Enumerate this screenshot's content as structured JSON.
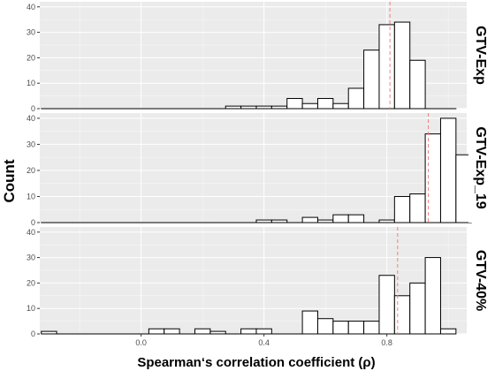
{
  "chart_data": {
    "type": "bar",
    "xlabel": "Spearman‘s correlation coefficient (ρ)",
    "ylabel": "Count",
    "x_ticks": [
      "0.0",
      "0.4",
      "0.8"
    ],
    "x_tick_values": [
      0.0,
      0.4,
      0.8
    ],
    "xlim": [
      -0.33,
      1.06
    ],
    "y_ticks": [
      "0",
      "10",
      "20",
      "30",
      "40"
    ],
    "y_tick_values": [
      0,
      10,
      20,
      30,
      40
    ],
    "ylim": [
      0,
      42
    ],
    "bin_width": 0.05,
    "grid": true,
    "colors": {
      "panel_bg": "#ebebeb",
      "grid": "#ffffff",
      "bar_fill": "#ffffff",
      "bar_stroke": "#000000",
      "median_line": "#f08080"
    },
    "panels": [
      {
        "name": "GTV-Exp",
        "reference_line": 0.81,
        "bins": [
          {
            "x": -0.3,
            "count": 0
          },
          {
            "x": -0.25,
            "count": 0
          },
          {
            "x": -0.2,
            "count": 0
          },
          {
            "x": -0.15,
            "count": 0
          },
          {
            "x": -0.1,
            "count": 0
          },
          {
            "x": -0.05,
            "count": 0
          },
          {
            "x": 0.0,
            "count": 0
          },
          {
            "x": 0.05,
            "count": 0
          },
          {
            "x": 0.1,
            "count": 0
          },
          {
            "x": 0.15,
            "count": 0
          },
          {
            "x": 0.2,
            "count": 0
          },
          {
            "x": 0.25,
            "count": 0
          },
          {
            "x": 0.3,
            "count": 1
          },
          {
            "x": 0.35,
            "count": 1
          },
          {
            "x": 0.4,
            "count": 1
          },
          {
            "x": 0.45,
            "count": 1
          },
          {
            "x": 0.5,
            "count": 4
          },
          {
            "x": 0.55,
            "count": 2
          },
          {
            "x": 0.6,
            "count": 4
          },
          {
            "x": 0.65,
            "count": 2
          },
          {
            "x": 0.7,
            "count": 8
          },
          {
            "x": 0.75,
            "count": 23
          },
          {
            "x": 0.8,
            "count": 33
          },
          {
            "x": 0.85,
            "count": 34
          },
          {
            "x": 0.9,
            "count": 19
          },
          {
            "x": 0.95,
            "count": 0
          },
          {
            "x": 1.0,
            "count": 0
          }
        ]
      },
      {
        "name": "GTV-Exp_19",
        "reference_line": 0.935,
        "bins": [
          {
            "x": -0.3,
            "count": 0
          },
          {
            "x": -0.25,
            "count": 0
          },
          {
            "x": -0.2,
            "count": 0
          },
          {
            "x": -0.15,
            "count": 0
          },
          {
            "x": -0.1,
            "count": 0
          },
          {
            "x": -0.05,
            "count": 0
          },
          {
            "x": 0.0,
            "count": 0
          },
          {
            "x": 0.05,
            "count": 0
          },
          {
            "x": 0.1,
            "count": 0
          },
          {
            "x": 0.15,
            "count": 0
          },
          {
            "x": 0.2,
            "count": 0
          },
          {
            "x": 0.25,
            "count": 0
          },
          {
            "x": 0.3,
            "count": 0
          },
          {
            "x": 0.35,
            "count": 0
          },
          {
            "x": 0.4,
            "count": 1
          },
          {
            "x": 0.45,
            "count": 1
          },
          {
            "x": 0.5,
            "count": 0
          },
          {
            "x": 0.55,
            "count": 2
          },
          {
            "x": 0.6,
            "count": 1
          },
          {
            "x": 0.65,
            "count": 3
          },
          {
            "x": 0.7,
            "count": 3
          },
          {
            "x": 0.75,
            "count": 0
          },
          {
            "x": 0.8,
            "count": 1
          },
          {
            "x": 0.85,
            "count": 10
          },
          {
            "x": 0.9,
            "count": 11
          },
          {
            "x": 0.95,
            "count": 34
          },
          {
            "x": 1.0,
            "count": 40
          },
          {
            "x": 1.05,
            "count": 26
          }
        ]
      },
      {
        "name": "GTV-40%",
        "reference_line": 0.835,
        "bins": [
          {
            "x": -0.3,
            "count": 1
          },
          {
            "x": -0.25,
            "count": 0
          },
          {
            "x": -0.2,
            "count": 0
          },
          {
            "x": -0.15,
            "count": 0
          },
          {
            "x": -0.1,
            "count": 0
          },
          {
            "x": -0.05,
            "count": 0
          },
          {
            "x": 0.0,
            "count": 0
          },
          {
            "x": 0.05,
            "count": 2
          },
          {
            "x": 0.1,
            "count": 2
          },
          {
            "x": 0.15,
            "count": 0
          },
          {
            "x": 0.2,
            "count": 2
          },
          {
            "x": 0.25,
            "count": 1
          },
          {
            "x": 0.3,
            "count": 0
          },
          {
            "x": 0.35,
            "count": 2
          },
          {
            "x": 0.4,
            "count": 2
          },
          {
            "x": 0.45,
            "count": 0
          },
          {
            "x": 0.5,
            "count": 0
          },
          {
            "x": 0.55,
            "count": 9
          },
          {
            "x": 0.6,
            "count": 6
          },
          {
            "x": 0.65,
            "count": 5
          },
          {
            "x": 0.7,
            "count": 5
          },
          {
            "x": 0.75,
            "count": 5
          },
          {
            "x": 0.8,
            "count": 23
          },
          {
            "x": 0.85,
            "count": 15
          },
          {
            "x": 0.9,
            "count": 20
          },
          {
            "x": 0.95,
            "count": 30
          },
          {
            "x": 1.0,
            "count": 2
          }
        ]
      }
    ]
  }
}
